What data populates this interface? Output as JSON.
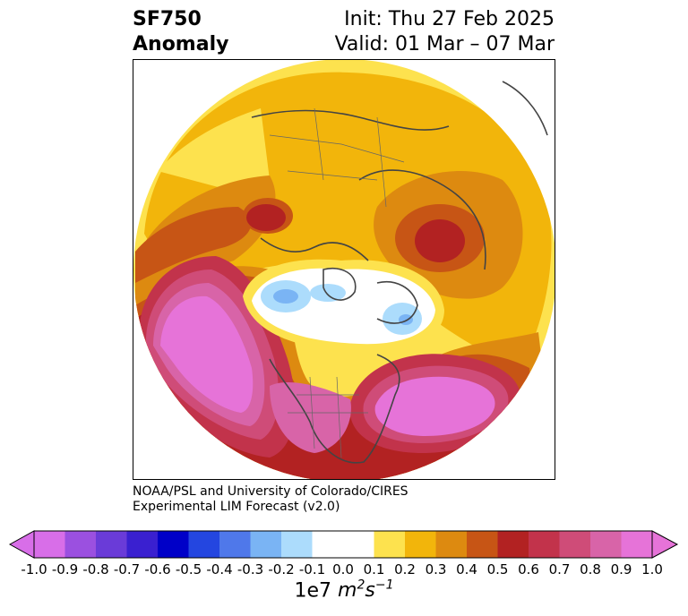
{
  "title": {
    "variable": "SF750",
    "kind": "Anomaly",
    "init": "Init: Thu 27 Feb 2025",
    "valid": "Valid: 01 Mar – 07 Mar"
  },
  "credit": {
    "line1": "NOAA/PSL and University of Colorado/CIRES",
    "line2": "Experimental LIM Forecast (v2.0)"
  },
  "colorbar": {
    "scale_prefix": "1e7",
    "unit_base": "m",
    "unit_exp1": "2",
    "unit_mid": "s",
    "unit_exp2": "−1",
    "ticks": [
      "-1.0",
      "-0.9",
      "-0.8",
      "-0.7",
      "-0.6",
      "-0.5",
      "-0.4",
      "-0.3",
      "-0.2",
      "-0.1",
      "0.0",
      "0.1",
      "0.2",
      "0.3",
      "0.4",
      "0.5",
      "0.6",
      "0.7",
      "0.8",
      "0.9",
      "1.0"
    ],
    "colors": [
      "#d86ee8",
      "#9b50e0",
      "#6a3bd8",
      "#3a20d0",
      "#0000c8",
      "#2446e0",
      "#4f78ea",
      "#7ab4f4",
      "#acdcfc",
      "#ffffff",
      "#ffffff",
      "#fde24e",
      "#f2b50b",
      "#dd8a10",
      "#c75515",
      "#b22222",
      "#c2334b",
      "#cf4c78",
      "#d864a8",
      "#e673d8"
    ],
    "extend_low_color": "#d86ee8",
    "extend_high_color": "#e673d8"
  },
  "map": {
    "projection": "North Polar Stereographic",
    "colors": {
      "yellow": "#fde24e",
      "gold": "#f2b50b",
      "orange": "#dd8a10",
      "darkorange": "#c75515",
      "red": "#b22222",
      "crimson": "#c2334b",
      "rose": "#cf4c78",
      "pink": "#d864a8",
      "magenta": "#e673d8",
      "lightblue": "#acdcfc",
      "midblue": "#7ab4f4",
      "coast": "#444444"
    }
  }
}
